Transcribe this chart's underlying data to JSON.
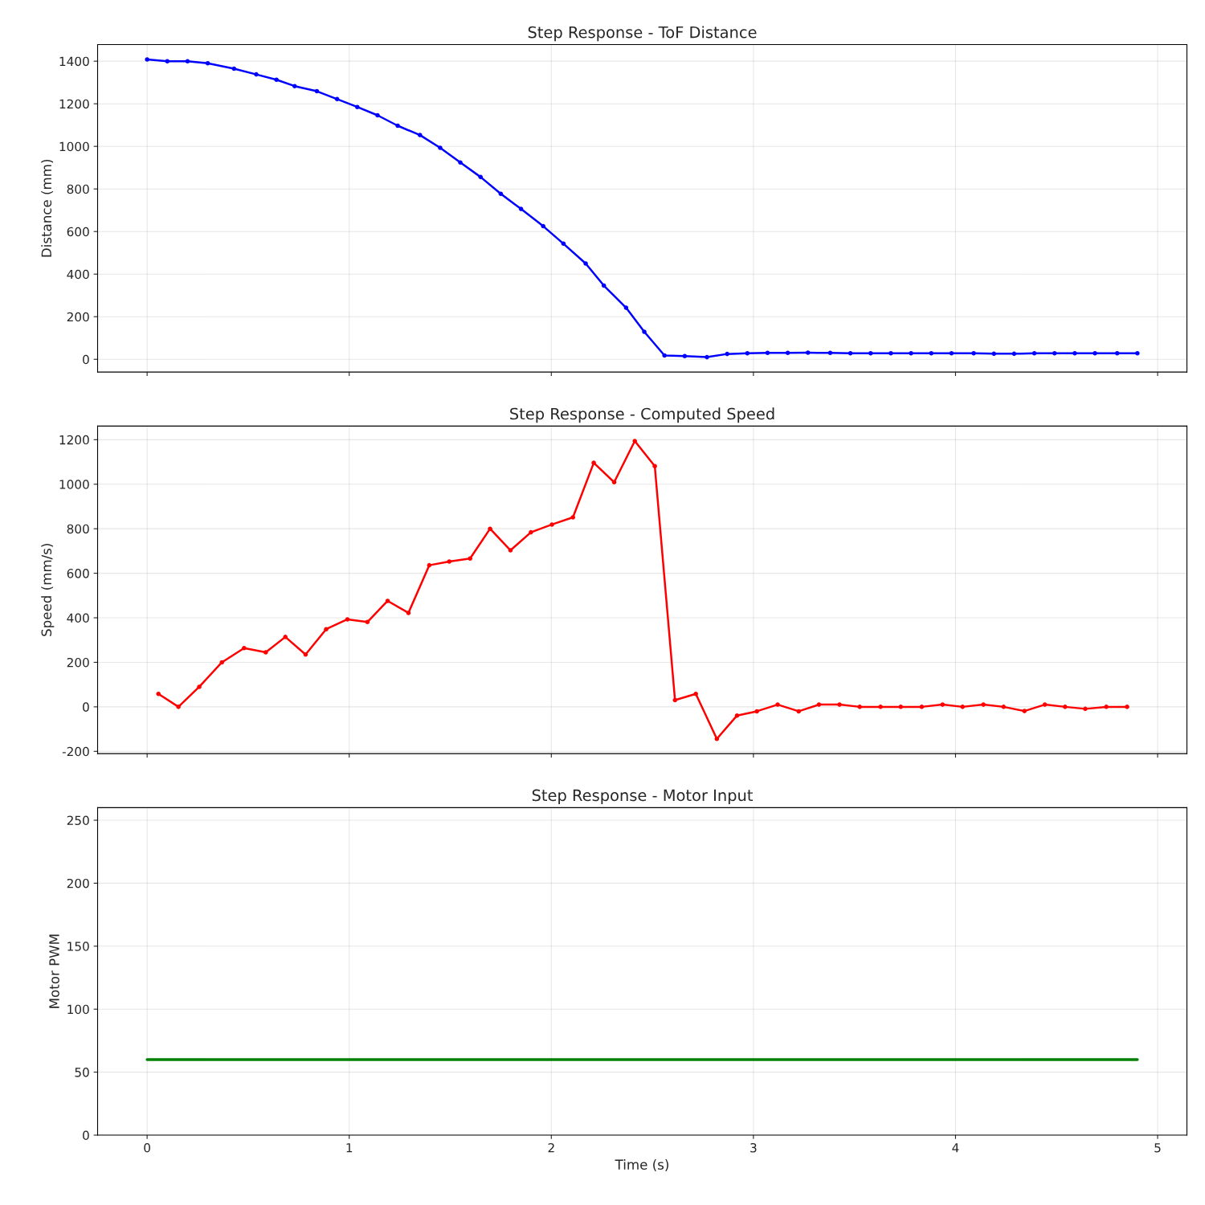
{
  "chart_data": [
    {
      "type": "line",
      "title": "Step Response - ToF Distance",
      "ylabel": "Distance (mm)",
      "marker": "circle",
      "grid": true,
      "tick_labels": "y",
      "xlim": [
        -0.245,
        5.145
      ],
      "xticks": [
        0,
        1,
        2,
        3,
        4,
        5
      ],
      "ylim": [
        -60,
        1478
      ],
      "yticks": [
        0,
        200,
        400,
        600,
        800,
        1000,
        1200,
        1400
      ],
      "series": [
        {
          "color": "#0000ff",
          "x": [
            0,
            0.1,
            0.2,
            0.3,
            0.43,
            0.54,
            0.64,
            0.73,
            0.84,
            0.94,
            1.04,
            1.14,
            1.24,
            1.35,
            1.45,
            1.55,
            1.65,
            1.75,
            1.85,
            1.96,
            2.06,
            2.17,
            2.26,
            2.37,
            2.46,
            2.56,
            2.66,
            2.77,
            2.87,
            2.97,
            3.07,
            3.17,
            3.27,
            3.38,
            3.48,
            3.58,
            3.68,
            3.78,
            3.88,
            3.98,
            4.09,
            4.19,
            4.29,
            4.39,
            4.49,
            4.59,
            4.69,
            4.8,
            4.9
          ],
          "values": [
            1408,
            1400,
            1400,
            1390,
            1365,
            1338,
            1313,
            1283,
            1259,
            1222,
            1185,
            1146,
            1097,
            1053,
            993,
            924,
            856,
            777,
            706,
            625,
            543,
            450,
            346,
            242,
            129,
            18,
            15,
            10,
            25,
            28,
            30,
            30,
            31,
            30,
            28,
            28,
            28,
            28,
            28,
            28,
            28,
            26,
            26,
            28,
            28,
            28,
            28,
            28,
            28
          ]
        }
      ]
    },
    {
      "type": "line",
      "title": "Step Response - Computed Speed",
      "ylabel": "Speed (mm/s)",
      "marker": "circle",
      "grid": true,
      "tick_labels": "y",
      "xlim": [
        -0.245,
        5.145
      ],
      "xticks": [
        0,
        1,
        2,
        3,
        4,
        5
      ],
      "ylim": [
        -210,
        1261
      ],
      "yticks": [
        -200,
        0,
        200,
        400,
        600,
        800,
        1000,
        1200
      ],
      "series": [
        {
          "color": "#ff0000",
          "x": [
            0.056,
            0.155,
            0.258,
            0.37,
            0.48,
            0.587,
            0.684,
            0.784,
            0.886,
            0.991,
            1.09,
            1.19,
            1.293,
            1.396,
            1.495,
            1.598,
            1.697,
            1.798,
            1.899,
            2.003,
            2.107,
            2.21,
            2.311,
            2.413,
            2.512,
            2.612,
            2.715,
            2.819,
            2.919,
            3.017,
            3.12,
            3.224,
            3.324,
            3.426,
            3.526,
            3.629,
            3.729,
            3.833,
            3.936,
            4.035,
            4.138,
            4.238,
            4.341,
            4.442,
            4.542,
            4.642,
            4.746,
            4.849
          ],
          "values": [
            58,
            0,
            90,
            200,
            264,
            245,
            314,
            235,
            349,
            393,
            381,
            476,
            422,
            636,
            653,
            666,
            800,
            703,
            784,
            819,
            851,
            1096,
            1009,
            1194,
            1081,
            30,
            58,
            -144,
            -39,
            -20,
            10,
            -20,
            10,
            10,
            0,
            0,
            0,
            0,
            10,
            0,
            10,
            0,
            -19,
            10,
            0,
            -9,
            0,
            0
          ]
        }
      ]
    },
    {
      "type": "line",
      "title": "Step Response - Motor Input",
      "ylabel": "Motor PWM",
      "xlabel": "Time (s)",
      "grid": true,
      "xlim": [
        -0.245,
        5.145
      ],
      "xticks": [
        0,
        1,
        2,
        3,
        4,
        5
      ],
      "ylim": [
        0,
        260
      ],
      "yticks": [
        0,
        50,
        100,
        150,
        200,
        250
      ],
      "series": [
        {
          "color": "#008000",
          "x": [
            0,
            4.9
          ],
          "values": [
            60,
            60
          ]
        }
      ]
    }
  ]
}
